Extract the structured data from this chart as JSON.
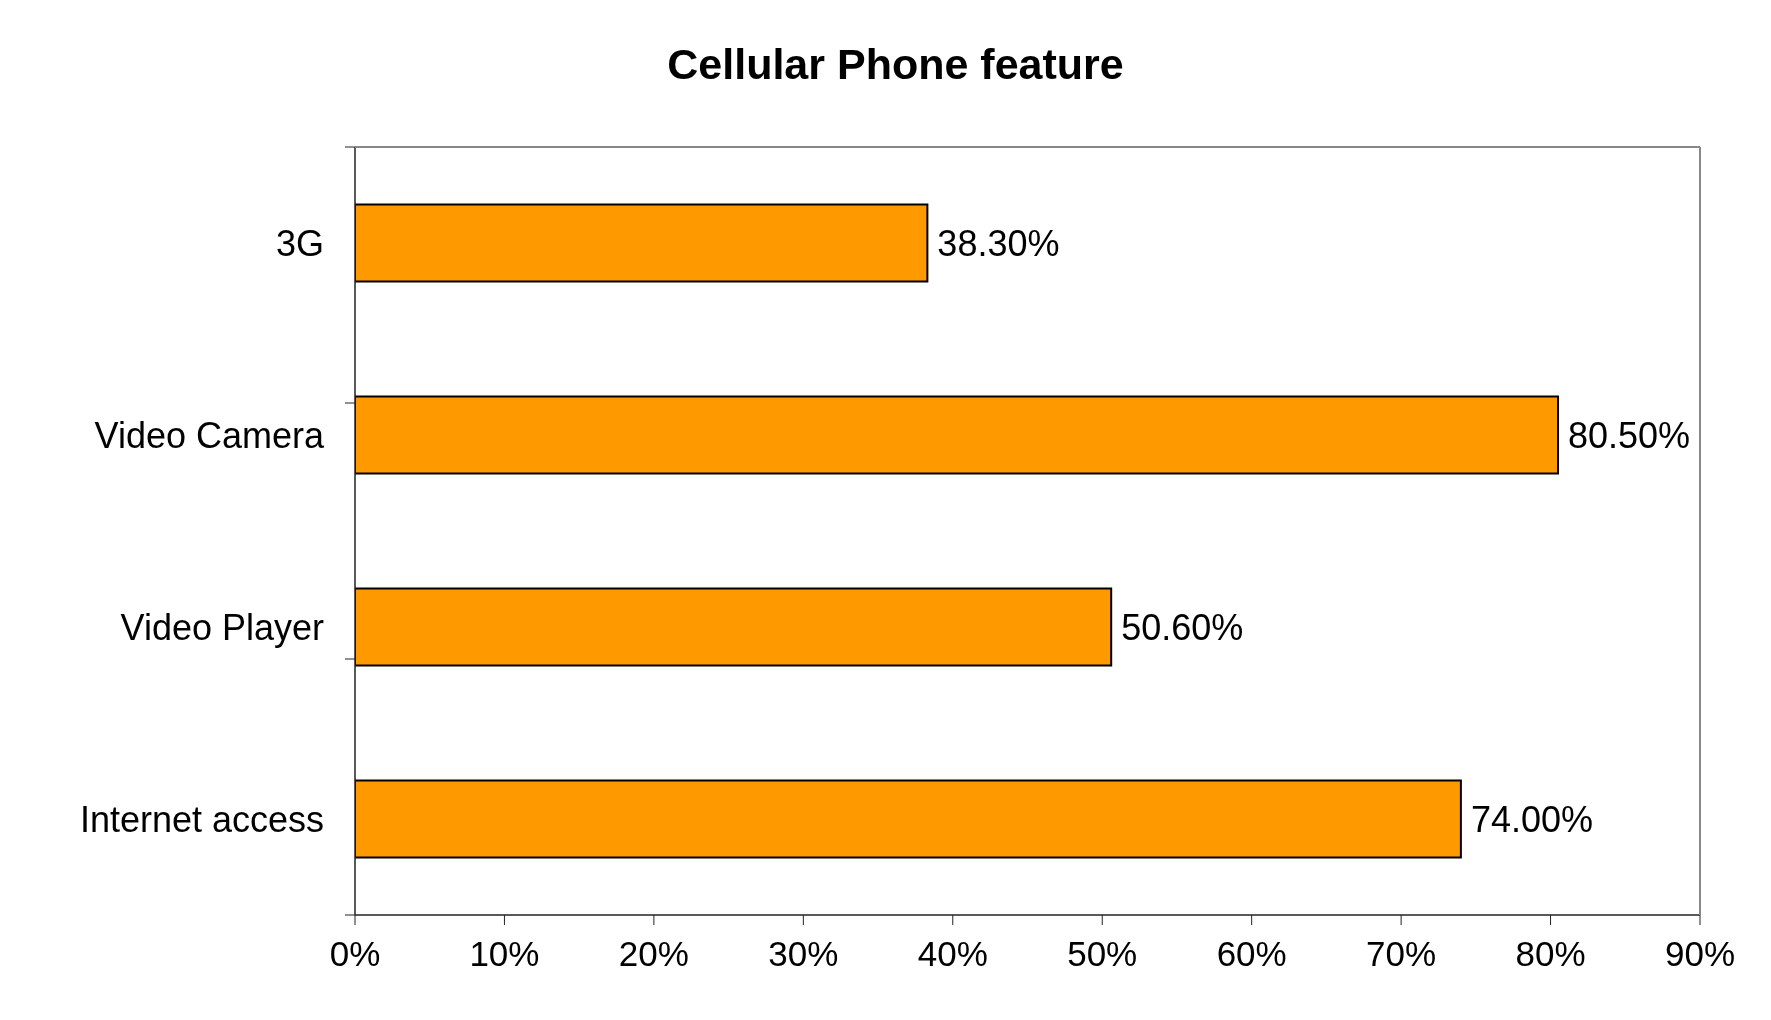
{
  "chart_data": {
    "type": "bar",
    "orientation": "horizontal",
    "title": "Cellular Phone feature",
    "categories": [
      "3G",
      "Video Camera",
      "Video Player",
      "Internet access"
    ],
    "values": [
      38.3,
      80.5,
      50.6,
      74.0
    ],
    "value_labels": [
      "38.30%",
      "80.50%",
      "50.60%",
      "74.00%"
    ],
    "color": "#ff9900",
    "xlim": [
      0,
      90
    ],
    "xticks": [
      {
        "value": 0,
        "label": "0%"
      },
      {
        "value": 10,
        "label": "10%"
      },
      {
        "value": 20,
        "label": "20%"
      },
      {
        "value": 30,
        "label": "30%"
      },
      {
        "value": 40,
        "label": "40%"
      },
      {
        "value": 50,
        "label": "50%"
      },
      {
        "value": 60,
        "label": "60%"
      },
      {
        "value": 70,
        "label": "70%"
      },
      {
        "value": 80,
        "label": "80%"
      },
      {
        "value": 90,
        "label": "90%"
      }
    ]
  }
}
